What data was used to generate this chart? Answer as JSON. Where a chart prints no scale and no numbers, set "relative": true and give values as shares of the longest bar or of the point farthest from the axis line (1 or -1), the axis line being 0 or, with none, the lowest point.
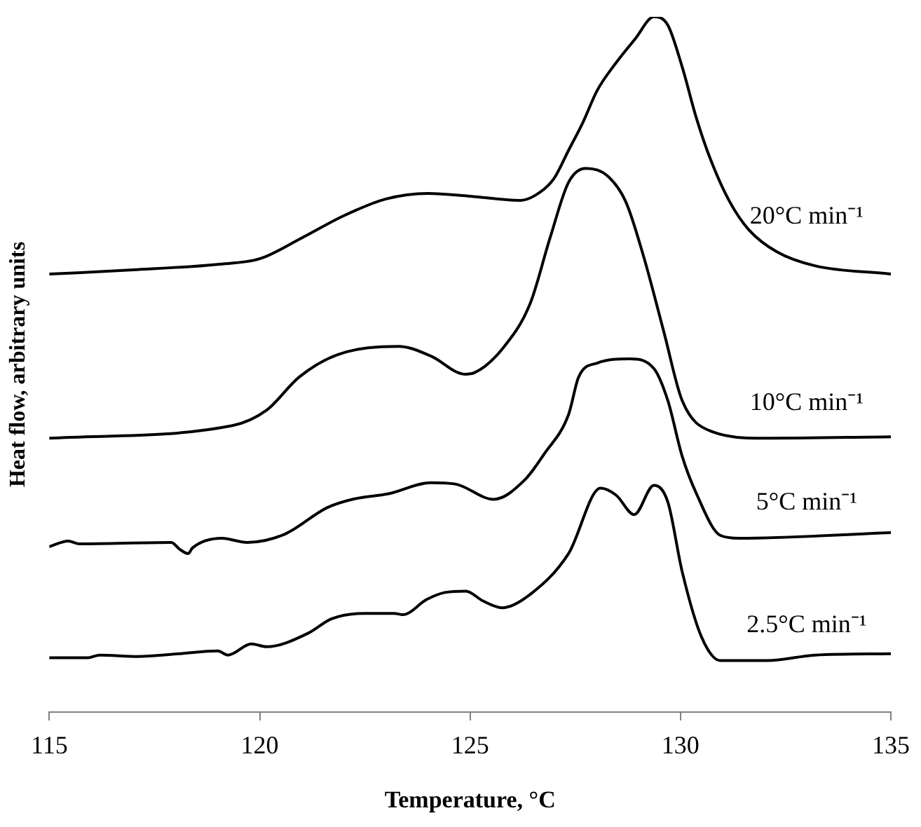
{
  "chart_data": {
    "type": "line",
    "xlabel": "Temperature, °C",
    "ylabel": "Heat flow, arbitrary units",
    "relative": true,
    "xlim": [
      115,
      135
    ],
    "xticks": [
      115,
      120,
      125,
      130,
      135
    ],
    "grid": false,
    "legend": false,
    "marker": "none",
    "line_style": "solid",
    "series": [
      {
        "name": "20°C min⁻¹",
        "color": "#000000",
        "x": [
          115,
          117,
          119,
          120,
          121,
          122,
          123,
          124,
          125,
          126.2,
          126.67,
          127,
          127.34,
          127.68,
          128.02,
          128.47,
          128.92,
          129.37,
          129.7,
          130.04,
          130.38,
          130.72,
          131.17,
          131.62,
          132.29,
          133.19,
          135
        ],
        "values": [
          0.63,
          0.636,
          0.644,
          0.652,
          0.682,
          0.714,
          0.738,
          0.746,
          0.742,
          0.736,
          0.748,
          0.768,
          0.808,
          0.848,
          0.894,
          0.934,
          0.968,
          1,
          0.988,
          0.928,
          0.854,
          0.794,
          0.734,
          0.694,
          0.662,
          0.642,
          0.63
        ]
      },
      {
        "name": "10°C min⁻¹",
        "color": "#000000",
        "x": [
          115,
          119.35,
          120.16,
          120.94,
          121.85,
          123.3,
          124.07,
          124.88,
          125.1,
          125.76,
          126.43,
          126.9,
          127.34,
          127.75,
          128.25,
          128.7,
          129.13,
          129.6,
          130.04,
          130.72,
          131.96,
          135
        ],
        "values": [
          0.394,
          0.412,
          0.434,
          0.482,
          0.514,
          0.526,
          0.512,
          0.486,
          0.488,
          0.522,
          0.588,
          0.682,
          0.762,
          0.782,
          0.772,
          0.734,
          0.654,
          0.548,
          0.448,
          0.404,
          0.394,
          0.396
        ]
      },
      {
        "name": "5°C min⁻¹",
        "color": "#000000",
        "x": [
          115,
          115.45,
          115.7,
          117.9,
          118.1,
          118.3,
          118.4,
          119.1,
          119.7,
          120.6,
          121.6,
          122.2,
          123.06,
          124.07,
          124.65,
          125.56,
          126.3,
          126.77,
          127.34,
          127.58,
          128.02,
          128.8,
          129.37,
          129.7,
          130.04,
          130.38,
          130.95,
          131.39,
          135
        ],
        "values": [
          0.238,
          0.246,
          0.242,
          0.244,
          0.234,
          0.228,
          0.236,
          0.25,
          0.244,
          0.256,
          0.294,
          0.306,
          0.314,
          0.33,
          0.328,
          0.306,
          0.334,
          0.372,
          0.428,
          0.482,
          0.502,
          0.508,
          0.494,
          0.448,
          0.368,
          0.314,
          0.254,
          0.25,
          0.258
        ]
      },
      {
        "name": "2.5°C min⁻¹",
        "color": "#000000",
        "x": [
          115,
          115.9,
          116.2,
          117.1,
          118.1,
          119,
          119.25,
          119.8,
          120.16,
          121.17,
          121.7,
          122.5,
          123.2,
          123.4,
          123.97,
          124.4,
          124.9,
          125.3,
          125.76,
          126.4,
          127.34,
          128.1,
          128.47,
          128.9,
          129.37,
          129.7,
          130.04,
          130.5,
          130.95,
          132.07,
          133.2,
          135
        ],
        "values": [
          0.078,
          0.078,
          0.082,
          0.08,
          0.084,
          0.088,
          0.082,
          0.098,
          0.094,
          0.114,
          0.134,
          0.142,
          0.142,
          0.14,
          0.162,
          0.172,
          0.174,
          0.16,
          0.15,
          0.168,
          0.228,
          0.322,
          0.312,
          0.284,
          0.326,
          0.302,
          0.202,
          0.108,
          0.074,
          0.074,
          0.082,
          0.084
        ]
      }
    ]
  }
}
